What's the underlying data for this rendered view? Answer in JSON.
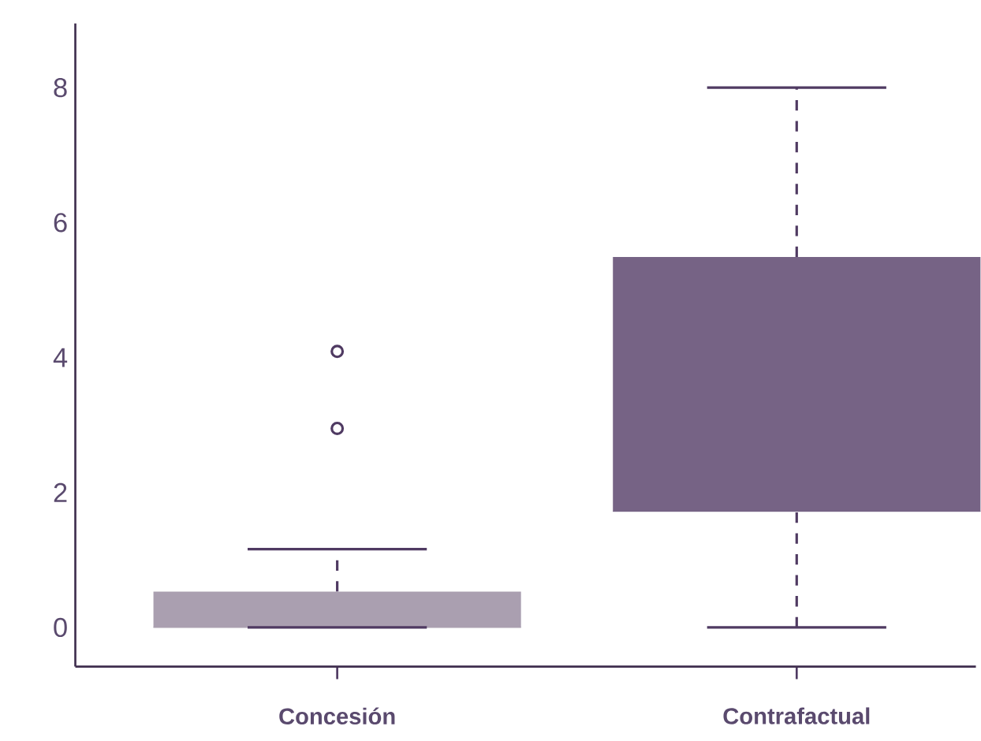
{
  "chart_data": {
    "type": "box",
    "categories": [
      "Concesión",
      "Contrafactual"
    ],
    "boxes": [
      {
        "low": 0,
        "q1": 0,
        "median": 0,
        "q3": 0.53,
        "high": 1.16,
        "outliers": [
          2.95,
          4.09
        ]
      },
      {
        "low": 0,
        "q1": 1.72,
        "median": 1.72,
        "q3": 5.49,
        "high": 8
      }
    ],
    "colors": [
      "#aa9fb0",
      "#766385"
    ],
    "ylim": [
      -0.58,
      8.95
    ],
    "yticks": [
      0,
      2,
      4,
      6,
      8
    ],
    "grid": false
  }
}
